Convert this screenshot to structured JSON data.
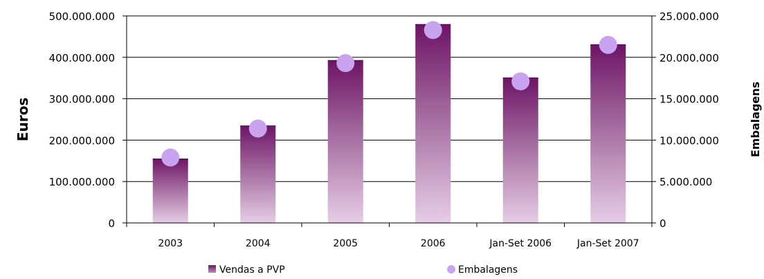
{
  "chart_data": {
    "type": "bar",
    "categories": [
      "2003",
      "2004",
      "2005",
      "2006",
      "Jan-Set 2006",
      "Jan-Set 2007"
    ],
    "series": [
      {
        "name": "Vendas a PVP",
        "type": "bar",
        "axis": "left",
        "values": [
          155000000,
          235000000,
          393000000,
          480000000,
          351000000,
          431000000
        ],
        "color": "#7a1f73"
      },
      {
        "name": "Embalagens",
        "type": "scatter",
        "axis": "right",
        "values": [
          7900000,
          11400000,
          19300000,
          23300000,
          17100000,
          21500000
        ],
        "color": "#c9a3f0"
      }
    ],
    "ylabel": "Euros",
    "y2label": "Embalagens",
    "xlabel": "",
    "ylim": [
      0,
      500000000
    ],
    "y2lim": [
      0,
      25000000
    ],
    "yticks": [
      "0",
      "100.000.000",
      "200.000.000",
      "300.000.000",
      "400.000.000",
      "500.000.000"
    ],
    "y2ticks": [
      "0",
      "5.000.000",
      "10.000.000",
      "15.000.000",
      "20.000.000",
      "25.000.000"
    ],
    "grid": true,
    "legend": "bottom"
  }
}
